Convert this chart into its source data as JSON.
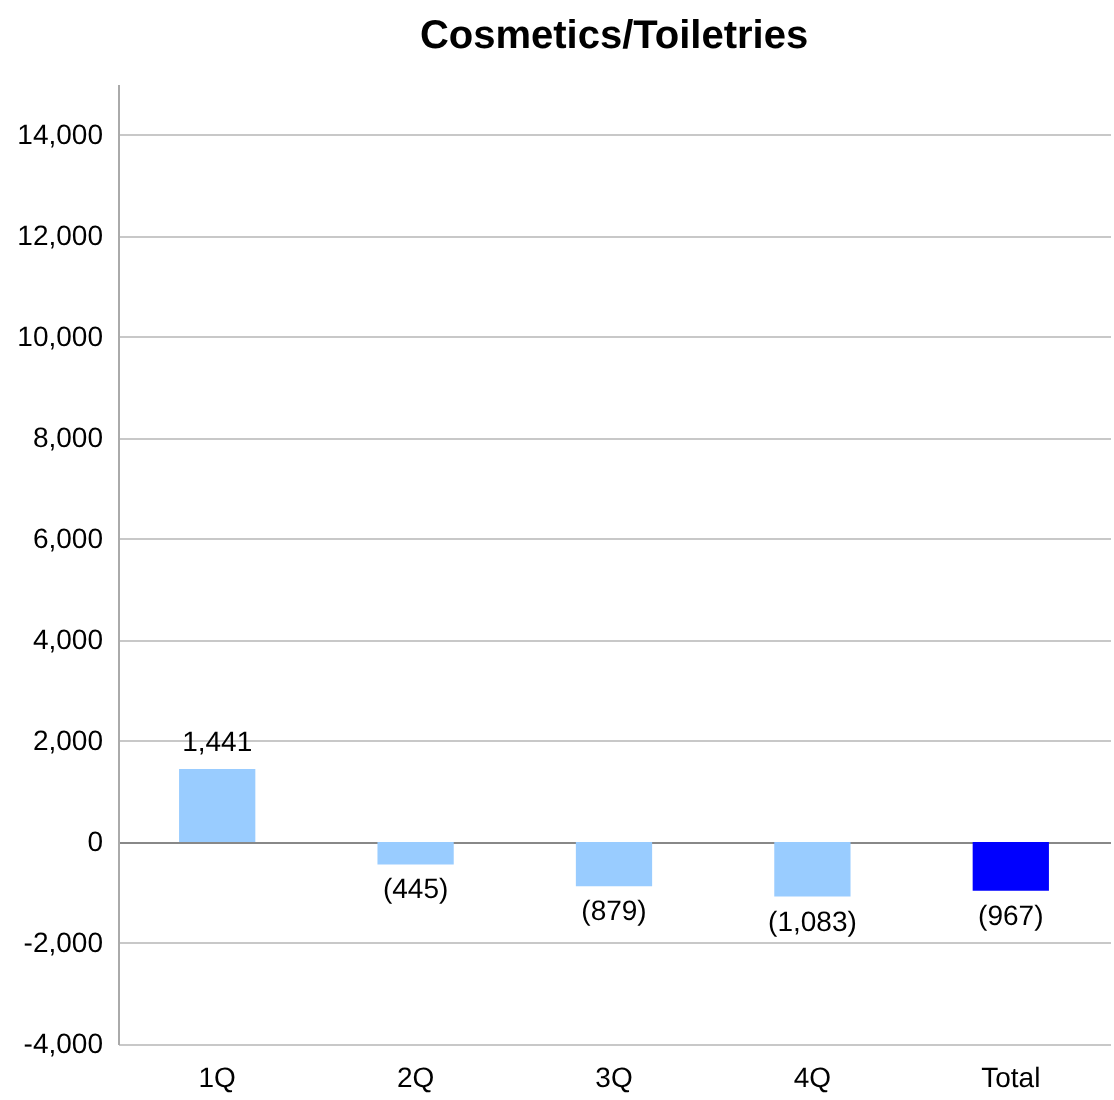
{
  "chart_data": {
    "type": "bar",
    "title": "Cosmetics/Toiletries",
    "categories": [
      "1Q",
      "2Q",
      "3Q",
      "4Q",
      "Total"
    ],
    "values": [
      1441,
      -445,
      -879,
      -1083,
      -967
    ],
    "colors": [
      "#99ccff",
      "#99ccff",
      "#99ccff",
      "#99ccff",
      "#0000ff"
    ],
    "value_labels": [
      "1,441",
      "(445)",
      "(879)",
      "(1,083)",
      "(967)"
    ],
    "ylim": [
      -4000,
      15000
    ],
    "yticks": [
      {
        "value": -4000,
        "label": "-4,000"
      },
      {
        "value": -2000,
        "label": "-2,000"
      },
      0,
      {
        "value": 2000,
        "label": "2,000"
      },
      {
        "value": 4000,
        "label": "4,000"
      },
      {
        "value": 6000,
        "label": "6,000"
      },
      {
        "value": 8000,
        "label": "8,000"
      },
      {
        "value": 10000,
        "label": "10,000"
      },
      {
        "value": 12000,
        "label": "12,000"
      },
      {
        "value": 14000,
        "label": "14,000"
      }
    ],
    "grid": "y"
  }
}
